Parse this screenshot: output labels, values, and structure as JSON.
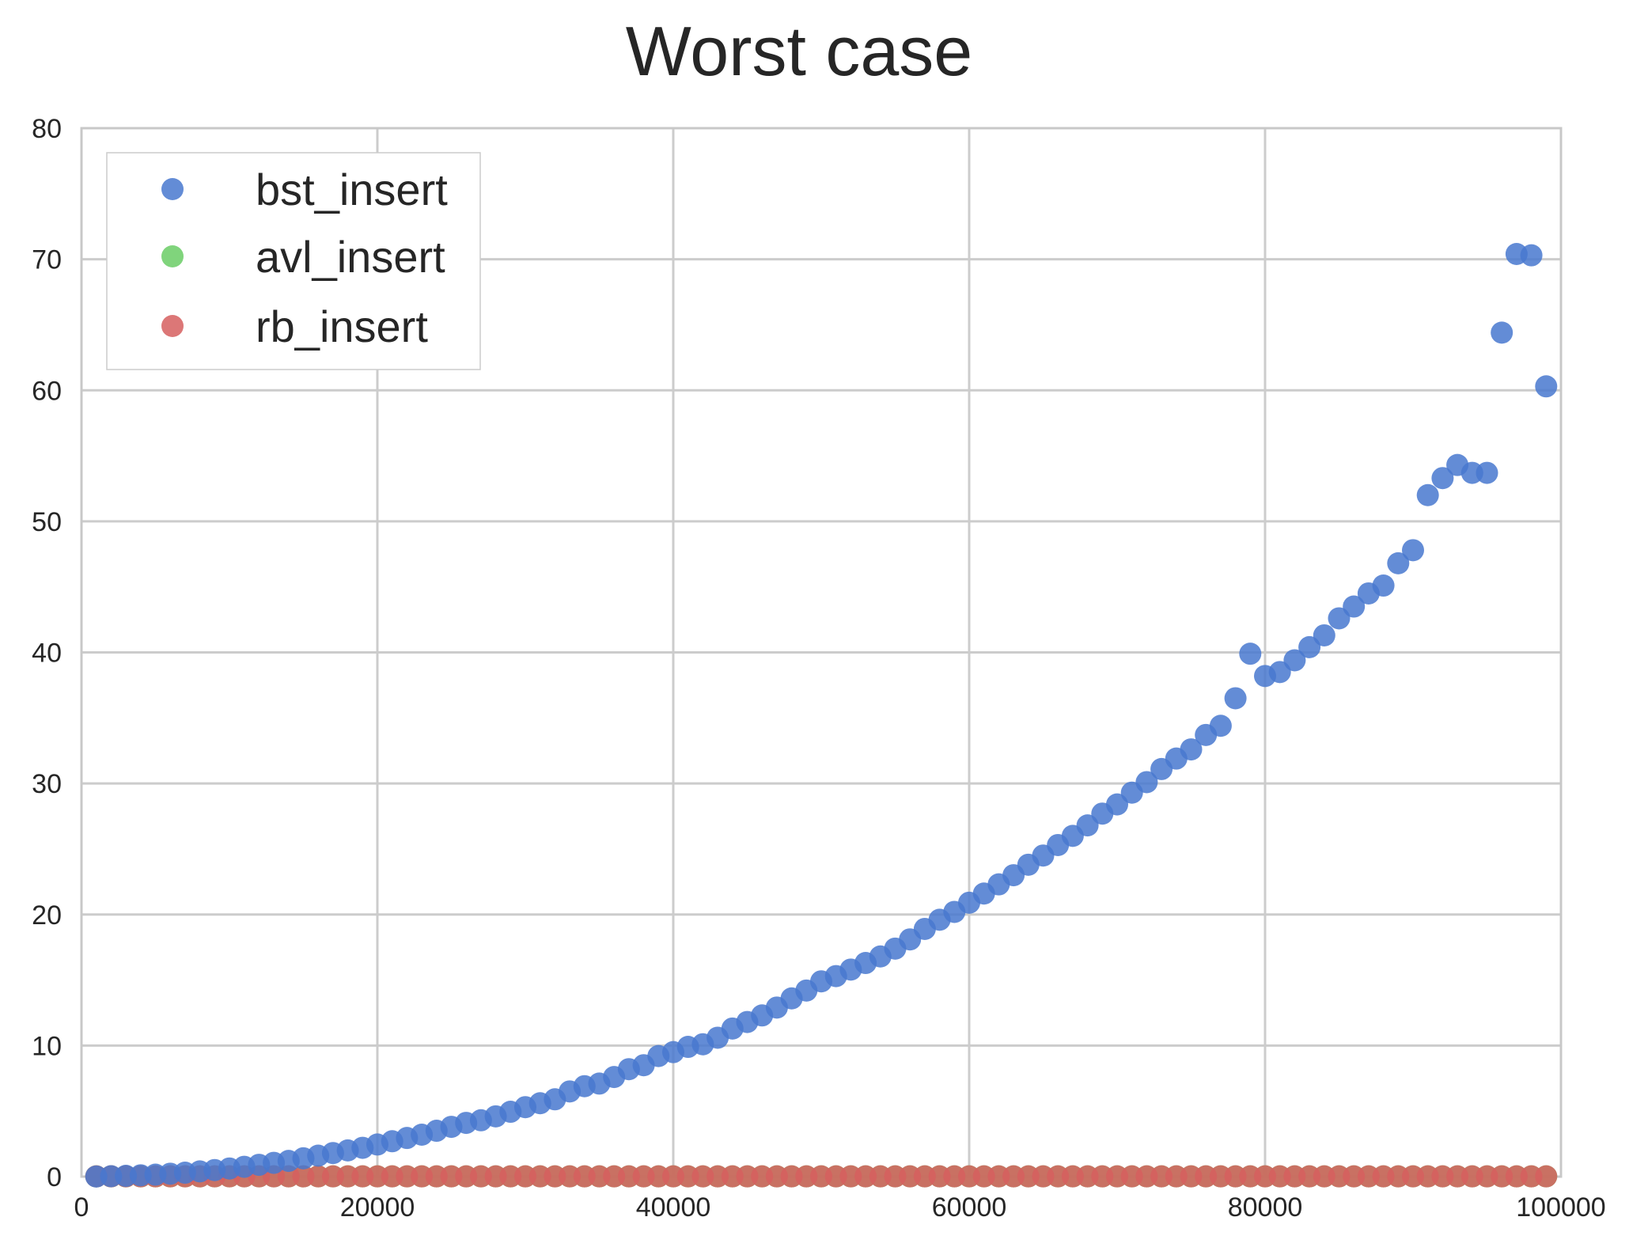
{
  "chart_data": {
    "type": "scatter",
    "title": "Worst case",
    "xlabel": "",
    "ylabel": "",
    "xlim": [
      0,
      100000
    ],
    "ylim": [
      0,
      80
    ],
    "xticks": [
      0,
      20000,
      40000,
      60000,
      80000,
      100000
    ],
    "xtick_labels": [
      "0",
      "20000",
      "40000",
      "60000",
      "80000",
      "100000"
    ],
    "yticks": [
      0,
      10,
      20,
      30,
      40,
      50,
      60,
      70,
      80
    ],
    "ytick_labels": [
      "0",
      "10",
      "20",
      "30",
      "40",
      "50",
      "60",
      "70",
      "80"
    ],
    "grid": true,
    "legend_position": "top-left",
    "x": [
      1000,
      2000,
      3000,
      4000,
      5000,
      6000,
      7000,
      8000,
      9000,
      10000,
      11000,
      12000,
      13000,
      14000,
      15000,
      16000,
      17000,
      18000,
      19000,
      20000,
      21000,
      22000,
      23000,
      24000,
      25000,
      26000,
      27000,
      28000,
      29000,
      30000,
      31000,
      32000,
      33000,
      34000,
      35000,
      36000,
      37000,
      38000,
      39000,
      40000,
      41000,
      42000,
      43000,
      44000,
      45000,
      46000,
      47000,
      48000,
      49000,
      50000,
      51000,
      52000,
      53000,
      54000,
      55000,
      56000,
      57000,
      58000,
      59000,
      60000,
      61000,
      62000,
      63000,
      64000,
      65000,
      66000,
      67000,
      68000,
      69000,
      70000,
      71000,
      72000,
      73000,
      74000,
      75000,
      76000,
      77000,
      78000,
      79000,
      80000,
      81000,
      82000,
      83000,
      84000,
      85000,
      86000,
      87000,
      88000,
      89000,
      90000,
      91000,
      92000,
      93000,
      94000,
      95000,
      96000,
      97000,
      98000,
      99000
    ],
    "series": [
      {
        "name": "bst_insert",
        "color": "#4878cf",
        "values": [
          0.01,
          0.03,
          0.06,
          0.1,
          0.15,
          0.22,
          0.3,
          0.4,
          0.5,
          0.62,
          0.75,
          0.9,
          1.05,
          1.2,
          1.4,
          1.6,
          1.8,
          2.0,
          2.2,
          2.45,
          2.7,
          2.95,
          3.2,
          3.5,
          3.8,
          4.1,
          4.3,
          4.6,
          4.95,
          5.3,
          5.6,
          5.9,
          6.5,
          6.9,
          7.1,
          7.6,
          8.2,
          8.5,
          9.2,
          9.5,
          9.9,
          10.1,
          10.6,
          11.3,
          11.8,
          12.3,
          12.9,
          13.6,
          14.2,
          14.9,
          15.3,
          15.8,
          16.3,
          16.8,
          17.4,
          18.1,
          18.9,
          19.6,
          20.2,
          20.9,
          21.6,
          22.3,
          23.0,
          23.8,
          24.5,
          25.3,
          26.0,
          26.8,
          27.7,
          28.4,
          29.3,
          30.1,
          31.1,
          31.9,
          32.6,
          33.7,
          34.4,
          36.5,
          39.9,
          38.2,
          38.5,
          39.4,
          40.4,
          41.3,
          42.6,
          43.5,
          44.5,
          45.1,
          46.8,
          47.8,
          52.0,
          53.3,
          54.3,
          53.7,
          53.7,
          64.4,
          70.4,
          70.3,
          60.3
        ]
      },
      {
        "name": "avl_insert",
        "color": "#6acc65",
        "values": [
          0.02,
          0.02,
          0.02,
          0.02,
          0.02,
          0.02,
          0.02,
          0.02,
          0.02,
          0.02,
          0.02,
          0.02,
          0.02,
          0.02,
          0.02,
          0.02,
          0.02,
          0.02,
          0.02,
          0.02,
          0.02,
          0.02,
          0.02,
          0.02,
          0.02,
          0.02,
          0.02,
          0.02,
          0.02,
          0.02,
          0.02,
          0.02,
          0.02,
          0.02,
          0.02,
          0.02,
          0.02,
          0.02,
          0.02,
          0.02,
          0.02,
          0.02,
          0.02,
          0.02,
          0.02,
          0.02,
          0.02,
          0.02,
          0.02,
          0.02,
          0.02,
          0.02,
          0.02,
          0.02,
          0.02,
          0.02,
          0.02,
          0.02,
          0.02,
          0.02,
          0.02,
          0.02,
          0.02,
          0.02,
          0.02,
          0.02,
          0.02,
          0.02,
          0.02,
          0.02,
          0.02,
          0.02,
          0.02,
          0.02,
          0.02,
          0.02,
          0.02,
          0.02,
          0.02,
          0.02,
          0.02,
          0.02,
          0.02,
          0.02,
          0.02,
          0.02,
          0.02,
          0.02,
          0.02,
          0.02,
          0.02,
          0.02,
          0.02,
          0.02,
          0.02,
          0.02,
          0.02,
          0.02,
          0.02
        ]
      },
      {
        "name": "rb_insert",
        "color": "#d65f5f",
        "values": [
          0.02,
          0.02,
          0.02,
          0.02,
          0.02,
          0.02,
          0.02,
          0.02,
          0.02,
          0.02,
          0.02,
          0.02,
          0.02,
          0.02,
          0.02,
          0.02,
          0.02,
          0.02,
          0.02,
          0.02,
          0.02,
          0.02,
          0.02,
          0.02,
          0.02,
          0.02,
          0.02,
          0.02,
          0.02,
          0.02,
          0.02,
          0.02,
          0.02,
          0.02,
          0.02,
          0.02,
          0.02,
          0.02,
          0.02,
          0.02,
          0.02,
          0.02,
          0.02,
          0.02,
          0.02,
          0.02,
          0.02,
          0.02,
          0.02,
          0.02,
          0.02,
          0.02,
          0.02,
          0.02,
          0.02,
          0.02,
          0.02,
          0.02,
          0.02,
          0.02,
          0.02,
          0.02,
          0.02,
          0.02,
          0.02,
          0.02,
          0.02,
          0.02,
          0.02,
          0.02,
          0.02,
          0.02,
          0.02,
          0.02,
          0.02,
          0.02,
          0.02,
          0.02,
          0.02,
          0.02,
          0.02,
          0.02,
          0.02,
          0.02,
          0.02,
          0.02,
          0.02,
          0.02,
          0.02,
          0.02,
          0.02,
          0.02,
          0.02,
          0.02,
          0.02,
          0.02,
          0.02,
          0.02,
          0.02
        ]
      }
    ]
  }
}
